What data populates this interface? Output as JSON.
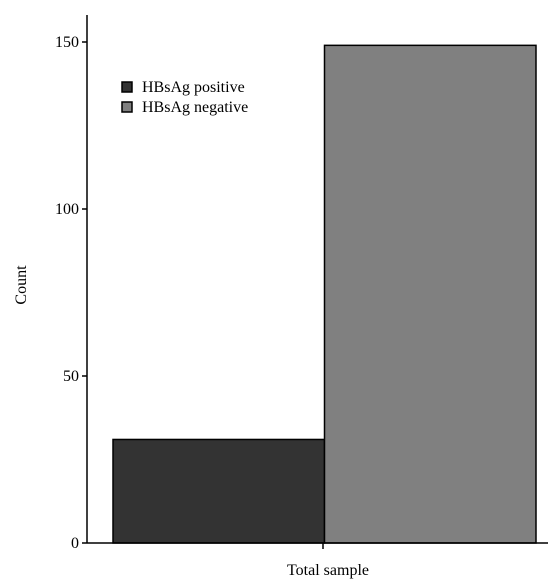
{
  "chart_data": {
    "type": "bar",
    "categories": [
      "Total sample"
    ],
    "series": [
      {
        "name": "HBsAg positive",
        "values": [
          31
        ],
        "color": "#333333"
      },
      {
        "name": "HBsAg negative",
        "values": [
          149
        ],
        "color": "#808080"
      }
    ],
    "xlabel": "",
    "ylabel": "Count",
    "ylim": [
      0,
      150
    ],
    "yticks": [
      "0",
      "50",
      "100",
      "150"
    ],
    "grid": false,
    "legend_position": "top-left"
  }
}
